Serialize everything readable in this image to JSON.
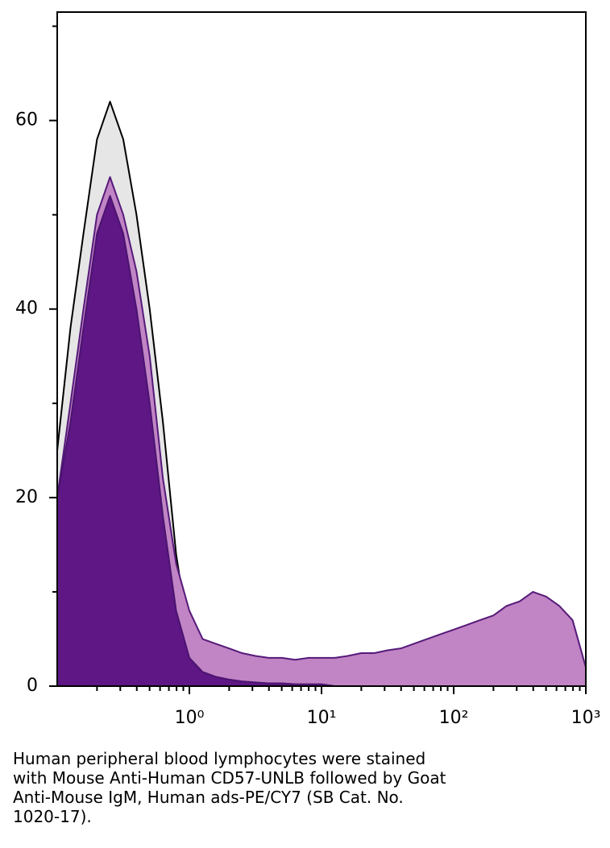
{
  "chart_data": {
    "type": "histogram-overlay",
    "x": [
      0.1,
      0.126,
      0.158,
      0.2,
      0.251,
      0.316,
      0.398,
      0.501,
      0.631,
      0.794,
      1,
      1.26,
      1.58,
      2,
      2.51,
      3.16,
      3.98,
      5.01,
      6.31,
      7.94,
      10,
      12.6,
      15.8,
      20,
      25.1,
      31.6,
      39.8,
      50.1,
      63.1,
      79.4,
      100,
      126,
      158,
      200,
      251,
      316,
      398,
      501,
      631,
      794,
      1000
    ],
    "series": [
      {
        "color": "#000000",
        "fill": "#e6e6e6",
        "values": [
          25,
          38,
          48,
          58,
          62,
          58,
          50,
          40,
          28,
          14,
          5,
          2,
          1,
          0.5,
          0.3,
          0.2,
          0,
          0,
          0,
          0,
          0,
          0,
          0,
          0,
          0,
          0,
          0,
          0,
          0,
          0,
          0,
          0,
          0,
          0,
          0,
          0,
          0,
          0,
          0,
          0,
          0
        ]
      },
      {
        "color": "#551a7a",
        "fill": "#c184c4",
        "values": [
          20,
          30,
          40,
          50,
          54,
          50,
          44,
          35,
          22,
          13,
          8,
          5,
          4.5,
          4,
          3.5,
          3.2,
          3,
          3,
          2.8,
          3,
          3,
          3,
          3.2,
          3.5,
          3.5,
          3.8,
          4,
          4.5,
          5,
          5.5,
          6,
          6.5,
          7,
          7.5,
          8.5,
          9,
          10,
          9.5,
          8.5,
          7,
          2
        ]
      },
      {
        "color": "#4a1470",
        "fill": "#5e1784",
        "values": [
          20,
          28,
          38,
          48,
          52,
          48,
          40,
          30,
          18,
          8,
          3,
          1.5,
          1,
          0.7,
          0.5,
          0.4,
          0.3,
          0.3,
          0.2,
          0.2,
          0.2,
          0,
          0,
          0,
          0,
          0,
          0,
          0,
          0,
          0,
          0,
          0,
          0,
          0,
          0,
          0,
          0,
          0,
          0,
          0,
          0
        ]
      }
    ],
    "xlim": [
      0.1,
      1000
    ],
    "xlog": true,
    "xticks": [
      {
        "value": 1,
        "label": "10⁰"
      },
      {
        "value": 10,
        "label": "10¹"
      },
      {
        "value": 100,
        "label": "10²"
      },
      {
        "value": 1000,
        "label": "10³"
      }
    ],
    "xminor": [
      0.2,
      0.3,
      0.4,
      0.5,
      0.6,
      0.7,
      0.8,
      0.9,
      2,
      3,
      4,
      5,
      6,
      7,
      8,
      9,
      20,
      30,
      40,
      50,
      60,
      70,
      80,
      90,
      200,
      300,
      400,
      500,
      600,
      700,
      800,
      900
    ],
    "ylim": [
      0,
      71.5
    ],
    "yticks": [
      0,
      20,
      40,
      60
    ],
    "yminor": [
      10,
      30,
      50,
      70
    ],
    "caption": [
      "Human peripheral blood lymphocytes were stained",
      "with Mouse Anti-Human CD57-UNLB followed by Goat",
      "Anti-Mouse IgM, Human ads-PE/CY7 (SB Cat. No.",
      "1020-17)."
    ]
  }
}
